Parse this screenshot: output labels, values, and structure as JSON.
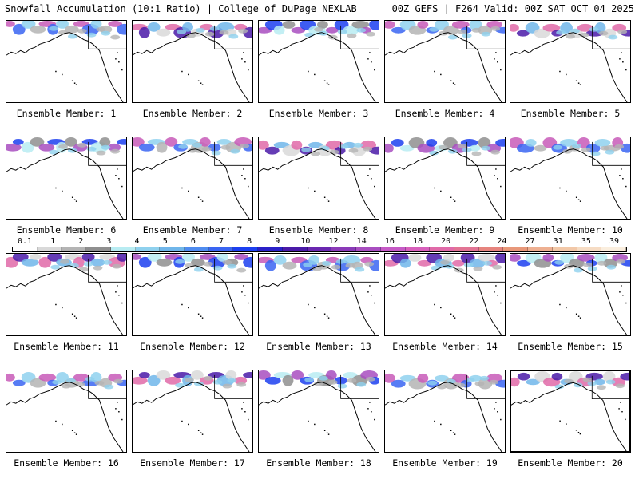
{
  "header": {
    "left": "Snowfall Accumulation (10:1 Ratio) | College of DuPage NEXLAB",
    "right": "00Z GEFS | F264 Valid: 00Z SAT OCT 04 2025"
  },
  "colorbar": {
    "labels": [
      "0.1",
      "1",
      "2",
      "3",
      "4",
      "5",
      "6",
      "7",
      "8",
      "9",
      "10",
      "12",
      "14",
      "16",
      "18",
      "20",
      "22",
      "24",
      "27",
      "31",
      "35",
      "39"
    ],
    "colors": [
      "#ffffff",
      "#d9d9d9",
      "#b4b4b4",
      "#8f8f8f",
      "#b8ecf2",
      "#8fd1ee",
      "#70b6ea",
      "#4f8cf0",
      "#3a65f2",
      "#1c3ff0",
      "#2a20c8",
      "#4a1aa8",
      "#6a28b0",
      "#8a3ab8",
      "#a84ec0",
      "#c65ac6",
      "#d860bc",
      "#e06aa8",
      "#e27494",
      "#e6847e",
      "#e8987a",
      "#eeb092",
      "#f2c8a8",
      "#f6dcc4",
      "#faeede"
    ]
  },
  "panels": [
    {
      "label": "Ensemble Member: 1"
    },
    {
      "label": "Ensemble Member: 2"
    },
    {
      "label": "Ensemble Member: 3"
    },
    {
      "label": "Ensemble Member: 4"
    },
    {
      "label": "Ensemble Member: 5"
    },
    {
      "label": "Ensemble Member: 6"
    },
    {
      "label": "Ensemble Member: 7"
    },
    {
      "label": "Ensemble Member: 8"
    },
    {
      "label": "Ensemble Member: 9"
    },
    {
      "label": "Ensemble Member: 10"
    },
    {
      "label": "Ensemble Member: 11"
    },
    {
      "label": "Ensemble Member: 12"
    },
    {
      "label": "Ensemble Member: 13"
    },
    {
      "label": "Ensemble Member: 14"
    },
    {
      "label": "Ensemble Member: 15"
    },
    {
      "label": "Ensemble Member: 16"
    },
    {
      "label": "Ensemble Member: 17"
    },
    {
      "label": "Ensemble Member: 18"
    },
    {
      "label": "Ensemble Member: 19"
    },
    {
      "label": "Ensemble Member: 20"
    }
  ]
}
